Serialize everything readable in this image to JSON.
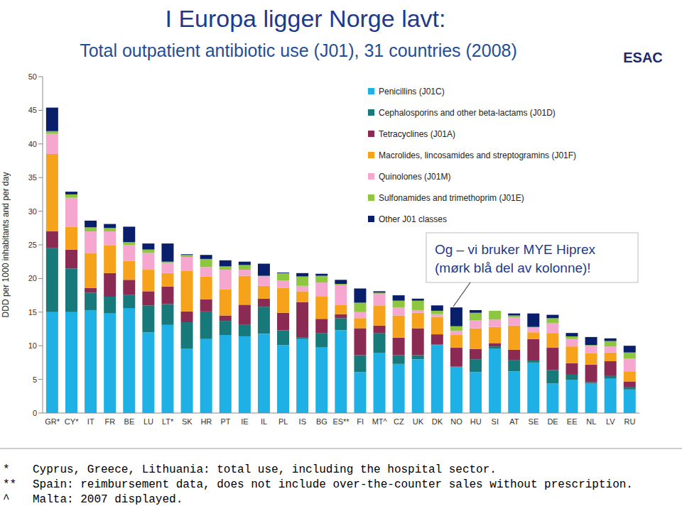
{
  "title": "I Europa ligger Norge lavt:",
  "subtitle": "Total outpatient antibiotic use (J01), 31 countries (2008)",
  "logo": "ESAC",
  "chart_data": {
    "type": "bar",
    "stacked": true,
    "y_label": "DDD per 1000 inhabitants and per day",
    "ylim": [
      0,
      50
    ],
    "yticks": [
      0,
      5,
      10,
      15,
      20,
      25,
      30,
      35,
      40,
      45,
      50
    ],
    "grid": false,
    "legend": "upper right",
    "categories": [
      "GR*",
      "CY*",
      "IT",
      "FR",
      "BE",
      "LU",
      "LT*",
      "SK",
      "HR",
      "PT",
      "IE",
      "IL",
      "PL",
      "IS",
      "BG",
      "ES**",
      "FI",
      "MT^",
      "CZ",
      "UK",
      "DK",
      "NO",
      "HU",
      "SI",
      "AT",
      "SE",
      "DE",
      "EE",
      "NL",
      "LV",
      "RU"
    ],
    "series": [
      {
        "name": "Penicillins (J01C)",
        "color": "#1fb0e6",
        "values": [
          15.0,
          15.0,
          15.3,
          14.8,
          15.6,
          12.0,
          13.1,
          9.6,
          11.0,
          11.6,
          11.4,
          11.8,
          10.1,
          11.0,
          9.8,
          12.3,
          6.1,
          8.9,
          7.3,
          8.0,
          10.1,
          6.8,
          6.1,
          9.6,
          6.2,
          7.5,
          4.4,
          4.9,
          4.4,
          5.1,
          3.5
        ]
      },
      {
        "name": "Cephalosporins and other beta-lactams (J01D)",
        "color": "#17797a",
        "values": [
          9.5,
          6.5,
          2.6,
          2.5,
          2.0,
          4.0,
          3.1,
          3.9,
          4.1,
          2.1,
          1.7,
          4.0,
          2.2,
          0.2,
          2.1,
          1.8,
          2.5,
          3.0,
          1.3,
          0.6,
          0.1,
          0.1,
          1.9,
          0.3,
          1.7,
          0.3,
          2.0,
          0.8,
          0.2,
          0.4,
          0.4
        ]
      },
      {
        "name": "Tetracyclines (J01A)",
        "color": "#8b2a52",
        "values": [
          2.5,
          2.8,
          0.7,
          3.5,
          2.2,
          2.1,
          2.6,
          1.6,
          1.8,
          0.8,
          3.0,
          1.2,
          2.6,
          5.3,
          2.1,
          0.6,
          4.0,
          1.1,
          2.6,
          4.0,
          1.5,
          2.8,
          1.5,
          0.5,
          1.5,
          3.2,
          3.3,
          1.7,
          2.6,
          2.2,
          0.8
        ]
      },
      {
        "name": "Macrolides, lincosamides and streptogramins (J01F)",
        "color": "#f7a21b",
        "values": [
          11.5,
          3.4,
          5.2,
          4.1,
          2.8,
          3.2,
          2.0,
          6.0,
          3.4,
          3.9,
          4.3,
          1.9,
          3.7,
          1.6,
          3.3,
          1.4,
          1.5,
          3.0,
          3.3,
          2.3,
          2.6,
          1.9,
          3.1,
          2.4,
          3.6,
          1.0,
          2.2,
          2.5,
          1.7,
          1.3,
          1.5
        ]
      },
      {
        "name": "Quinolones (J01M)",
        "color": "#f6a7d0",
        "values": [
          3.0,
          4.3,
          3.2,
          2.1,
          2.4,
          2.5,
          1.5,
          2.1,
          1.4,
          2.9,
          0.9,
          1.4,
          1.1,
          0.8,
          2.1,
          2.9,
          0.9,
          1.7,
          1.2,
          0.4,
          0.4,
          0.6,
          1.2,
          1.1,
          1.2,
          0.7,
          1.5,
          1.1,
          1.1,
          0.9,
          1.9
        ]
      },
      {
        "name": "Sulfonamides and trimethoprim (J01E)",
        "color": "#8dc63f",
        "values": [
          0.4,
          0.5,
          0.6,
          0.5,
          0.4,
          0.5,
          0.2,
          0.3,
          1.2,
          0.5,
          0.7,
          0.1,
          1.1,
          1.4,
          1.0,
          0.2,
          1.4,
          0.2,
          1.0,
          1.4,
          0.5,
          0.7,
          1.1,
          1.3,
          0.3,
          0.1,
          0.7,
          0.4,
          0.1,
          0.8,
          0.9
        ]
      },
      {
        "name": "Other J01 classes",
        "color": "#0a1f6b",
        "values": [
          3.5,
          0.4,
          1.0,
          0.6,
          2.3,
          0.9,
          2.7,
          0.1,
          0.6,
          0.9,
          0.5,
          1.8,
          0.1,
          0.5,
          0.3,
          0.6,
          2.1,
          0.2,
          0.8,
          0.3,
          0.8,
          2.8,
          0.4,
          0.0,
          0.3,
          2.0,
          0.5,
          0.5,
          1.2,
          0.4,
          1.0
        ]
      }
    ],
    "annotation": [
      "Og – vi bruker MYE Hiprex",
      "(mørk blå del av kolonne)!"
    ]
  },
  "footnotes": [
    {
      "mark": "*",
      "text": "Cyprus, Greece, Lithuania: total use, including the hospital sector."
    },
    {
      "mark": "**",
      "text": "Spain: reimbursement data, does not include over-the-counter sales without prescription."
    },
    {
      "mark": "^",
      "text": "Malta: 2007 displayed."
    }
  ]
}
